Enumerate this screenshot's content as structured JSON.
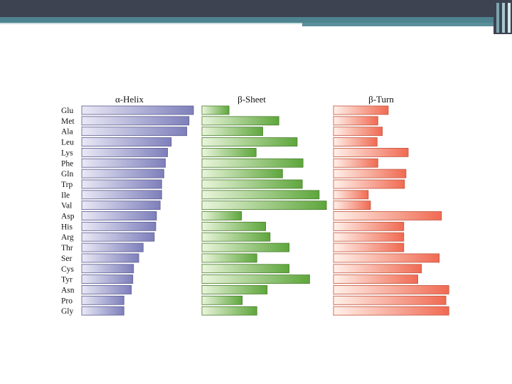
{
  "chart_data": {
    "type": "bar",
    "orientation": "horizontal",
    "categories": [
      "Glu",
      "Met",
      "Ala",
      "Leu",
      "Lys",
      "Phe",
      "Gln",
      "Trp",
      "Ile",
      "Val",
      "Asp",
      "His",
      "Arg",
      "Thr",
      "Ser",
      "Cys",
      "Tyr",
      "Asn",
      "Pro",
      "Gly"
    ],
    "panels": [
      {
        "title": "α-Helix",
        "color": "#7e7fbb",
        "values": [
          1.51,
          1.45,
          1.42,
          1.21,
          1.16,
          1.13,
          1.11,
          1.08,
          1.08,
          1.06,
          1.01,
          1.0,
          0.98,
          0.83,
          0.77,
          0.7,
          0.69,
          0.67,
          0.57,
          0.57
        ]
      },
      {
        "title": "β-Sheet",
        "color": "#62a53f",
        "values": [
          0.37,
          1.05,
          0.83,
          1.3,
          0.74,
          1.38,
          1.1,
          1.37,
          1.6,
          1.7,
          0.54,
          0.87,
          0.93,
          1.19,
          0.75,
          1.19,
          1.47,
          0.89,
          0.55,
          0.75
        ]
      },
      {
        "title": "β-Turn",
        "color": "#f0735a",
        "values": [
          0.74,
          0.6,
          0.66,
          0.59,
          1.01,
          0.6,
          0.98,
          0.96,
          0.47,
          0.5,
          1.46,
          0.95,
          0.95,
          0.95,
          1.43,
          1.19,
          1.14,
          1.56,
          1.52,
          1.56
        ]
      }
    ]
  }
}
